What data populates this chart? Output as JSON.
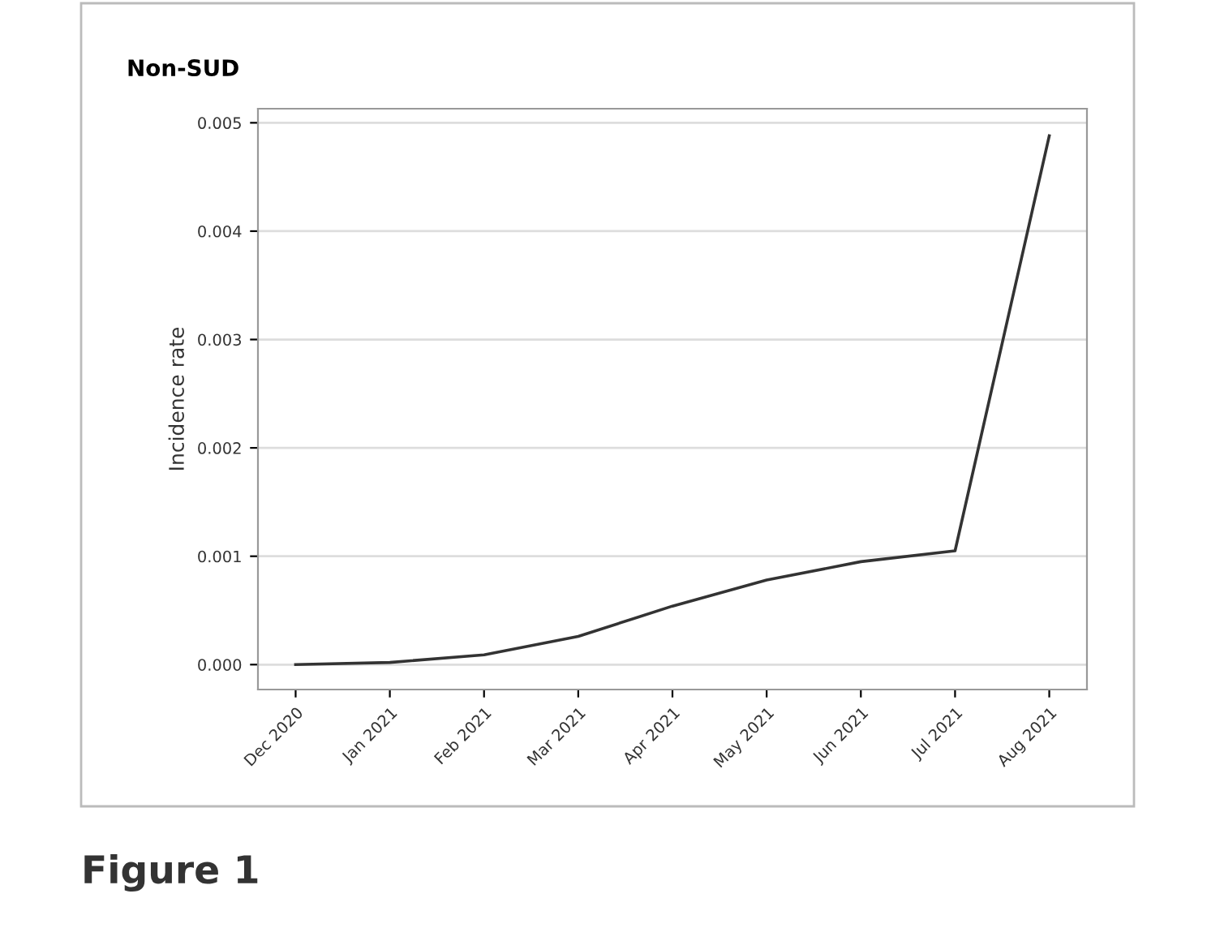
{
  "chart_data": {
    "type": "line",
    "title": "Non-SUD",
    "ylabel": "Incidence rate",
    "categories": [
      "Dec 2020",
      "Jan 2021",
      "Feb 2021",
      "Mar 2021",
      "Apr 2021",
      "May 2021",
      "Jun 2021",
      "Jul 2021",
      "Aug 2021"
    ],
    "series": [
      {
        "color": "#333333",
        "values": [
          0.0,
          2e-05,
          9e-05,
          0.00026,
          0.00054,
          0.00078,
          0.00095,
          0.00105,
          0.00488
        ]
      }
    ],
    "ylim": [
      -0.00023,
      0.00513
    ],
    "yticks": [
      {
        "value": 0,
        "label": "0.000"
      },
      {
        "value": 0.001,
        "label": "0.001"
      },
      {
        "value": 0.002,
        "label": "0.002"
      },
      {
        "value": 0.003,
        "label": "0.003"
      },
      {
        "value": 0.004,
        "label": "0.004"
      },
      {
        "value": 0.005,
        "label": "0.005"
      }
    ],
    "grid": "y",
    "annotations": [
      "Figure 1"
    ]
  }
}
